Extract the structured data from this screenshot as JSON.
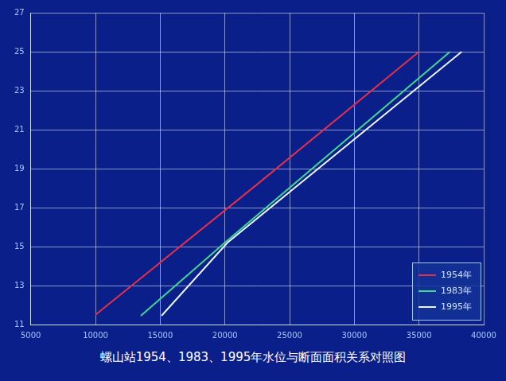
{
  "chart_data": {
    "type": "line",
    "title": "螺山站1954、1983、1995年水位与断面面积关系对照图",
    "series": [
      {
        "name": "1954年",
        "color": "#e0304a",
        "x": [
          10000,
          22500,
          35000
        ],
        "values": [
          11.5,
          18.2,
          25.0
        ]
      },
      {
        "name": "1983年",
        "color": "#40d890",
        "x": [
          13500,
          20000,
          37400
        ],
        "values": [
          11.45,
          15.2,
          25.0
        ]
      },
      {
        "name": "1995年",
        "color": "#e8f4ff",
        "x": [
          15100,
          20200,
          38300
        ],
        "values": [
          11.45,
          15.2,
          25.0
        ]
      }
    ],
    "xlim": [
      5000,
      40000
    ],
    "xticks": [
      5000,
      10000,
      15000,
      20000,
      25000,
      30000,
      35000,
      40000
    ],
    "ylim": [
      11,
      27
    ],
    "yticks": [
      11,
      13,
      15,
      17,
      19,
      21,
      23,
      25,
      27
    ],
    "grid": true,
    "legend": "lower right"
  }
}
